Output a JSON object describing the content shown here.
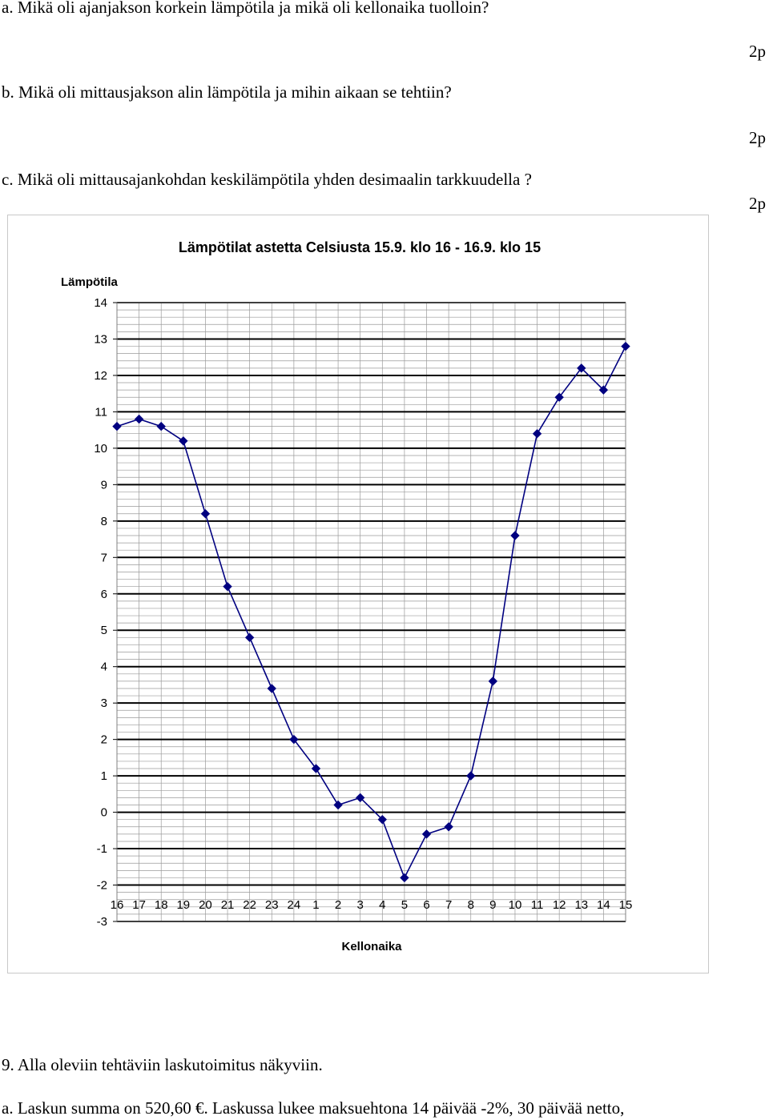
{
  "questions": {
    "a": "a. Mikä oli ajanjakson korkein lämpötila ja mikä oli kellonaika tuolloin?",
    "b": "b. Mikä oli mittausjakson alin lämpötila ja mihin aikaan se tehtiin?",
    "c": "c. Mikä oli mittausajankohdan keskilämpötila yhden desimaalin tarkkuudella ?"
  },
  "points": {
    "a": "2p",
    "b": "2p",
    "c": "2p"
  },
  "chart_data": {
    "type": "line",
    "title": "Lämpötilat astetta Celsiusta 15.9. klo 16 - 16.9. klo 15",
    "xlabel": "Kellonaika",
    "ylabel": "Lämpötila",
    "ylim": [
      -3,
      14
    ],
    "grid": true,
    "colors": {
      "line": "#000080",
      "major_grid": "#000000",
      "minor_grid": "#9a9a9a"
    },
    "categories": [
      "16",
      "17",
      "18",
      "19",
      "20",
      "21",
      "22",
      "23",
      "24",
      "1",
      "2",
      "3",
      "4",
      "5",
      "6",
      "7",
      "8",
      "9",
      "10",
      "11",
      "12",
      "13",
      "14",
      "15"
    ],
    "y_ticks": [
      "14",
      "13",
      "12",
      "11",
      "10",
      "9",
      "8",
      "7",
      "6",
      "5",
      "4",
      "3",
      "2",
      "1",
      "0",
      "-1",
      "-2",
      "-3"
    ],
    "series": [
      {
        "values": [
          10.6,
          10.8,
          10.6,
          10.2,
          8.2,
          6.2,
          4.8,
          3.4,
          2.0,
          1.2,
          0.2,
          0.4,
          -0.2,
          -1.8,
          -0.6,
          -0.4,
          1.0,
          3.6,
          7.6,
          10.4,
          11.4,
          12.2,
          11.6,
          12.8
        ]
      }
    ]
  },
  "footer": {
    "task": "9. Alla oleviin tehtäviin laskutoimitus näkyviin.",
    "line_a": "a. Laskun summa on 520,60 €. Laskussa lukee maksuehtona 14 päivää -2%, 30 päivää netto,"
  }
}
